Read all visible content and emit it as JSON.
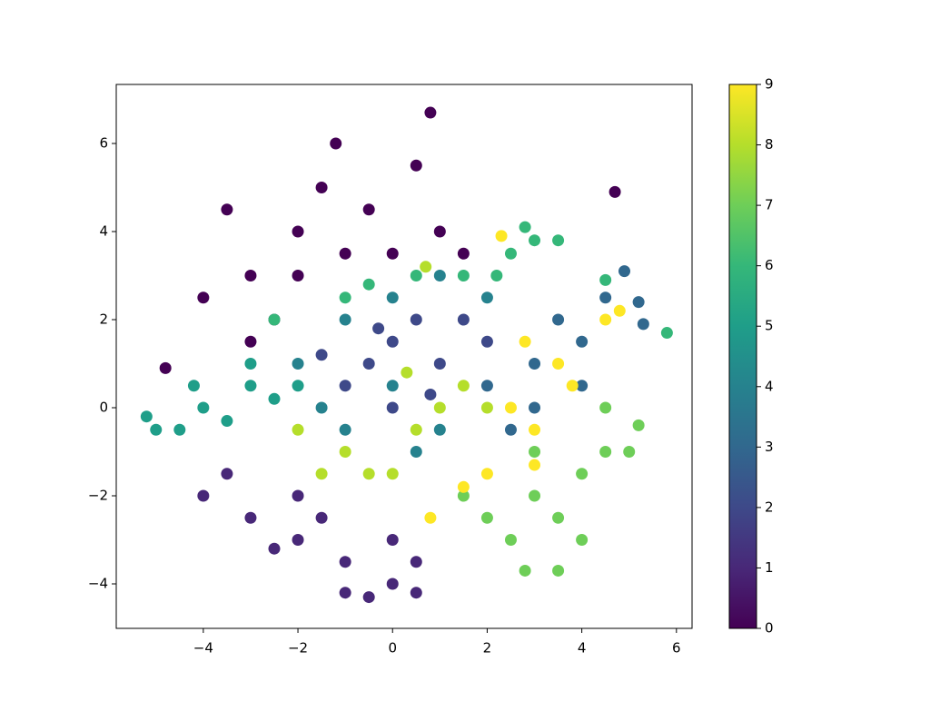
{
  "chart_data": {
    "type": "scatter",
    "colormap": "viridis",
    "xlim": [
      -5.84,
      6.33
    ],
    "ylim": [
      -5.01,
      7.34
    ],
    "clim": [
      0,
      9
    ],
    "xticks": [
      {
        "value": -4,
        "label": "−4"
      },
      {
        "value": -2,
        "label": "−2"
      },
      0,
      2,
      4,
      6
    ],
    "yticks": [
      {
        "value": -4,
        "label": "−4"
      },
      {
        "value": -2,
        "label": "−2"
      },
      0,
      2,
      4,
      6
    ],
    "cticks": [
      0,
      1,
      2,
      3,
      4,
      5,
      6,
      7,
      8,
      9
    ],
    "x": [
      -2,
      -1,
      -1.5,
      -3,
      -0.5,
      0.5,
      1,
      -2.5,
      -4,
      -3.5,
      0.8,
      -1.2,
      -4.8,
      4.7,
      -2,
      0,
      -3,
      1.5,
      -4,
      -3,
      -2,
      -1,
      0,
      -0.5,
      0.5,
      -1.5,
      -2.5,
      0,
      -1,
      -3.5,
      -2,
      0.5,
      0,
      -0.5,
      0.5,
      1,
      -1,
      1.5,
      0,
      -0.3,
      2,
      0.8,
      -1.5,
      3.5,
      4,
      3,
      2.5,
      4.5,
      5.2,
      5.3,
      4.9,
      3,
      2,
      4,
      -1,
      0,
      1,
      -2,
      1,
      0,
      -1,
      2,
      -1.5,
      0.5,
      -4,
      -3,
      -4.5,
      -5.2,
      -5,
      -3.5,
      -2.5,
      -3,
      -4.2,
      -2,
      2.5,
      3,
      2.2,
      1.5,
      3.5,
      5.8,
      4.5,
      -2.5,
      -1,
      0.5,
      2.8,
      -0.5,
      2,
      3,
      2.5,
      3.5,
      4,
      2.8,
      3.5,
      4.5,
      5,
      5.2,
      4,
      1.5,
      3,
      4.5,
      -1,
      0,
      1,
      0.5,
      -0.5,
      1.5,
      -2,
      0.3,
      2,
      -1.5,
      0.7,
      2,
      2.5,
      3,
      1.5,
      3.5,
      4.5,
      4.8,
      2.3,
      3.8,
      2.8,
      0.8,
      3
    ],
    "y": [
      4,
      3.5,
      5,
      3,
      4.5,
      5.5,
      4,
      2,
      2.5,
      4.5,
      6.7,
      6,
      0.9,
      4.9,
      3,
      3.5,
      1.5,
      3.5,
      -2,
      -2.5,
      -3,
      -3.5,
      -4,
      -4.3,
      -3.5,
      -2.5,
      -3.2,
      -3,
      -4.2,
      -1.5,
      -2,
      -4.2,
      1.5,
      1,
      2,
      1,
      0.5,
      2,
      0,
      1.8,
      1.5,
      0.3,
      1.2,
      2,
      1.5,
      0,
      -0.5,
      2.5,
      2.4,
      1.9,
      3.1,
      1,
      0.5,
      0.5,
      2,
      2.5,
      3,
      1,
      -0.5,
      0.5,
      -0.5,
      2.5,
      0,
      -1,
      0,
      0.5,
      -0.5,
      -0.2,
      -0.5,
      -0.3,
      0.2,
      1,
      0.5,
      0.5,
      3.5,
      3.8,
      3,
      3,
      3.8,
      1.7,
      2.9,
      2,
      2.5,
      3,
      4.1,
      2.8,
      -2.5,
      -2,
      -3,
      -2.5,
      -1.5,
      -3.7,
      -3.7,
      -1,
      -1,
      -0.4,
      -3,
      -2,
      -1,
      0,
      -1,
      -1.5,
      0,
      -0.5,
      -1.5,
      0.5,
      -0.5,
      0.8,
      0,
      -1.5,
      3.2,
      -1.5,
      0,
      -0.5,
      -1.8,
      1,
      2,
      2.2,
      3.9,
      0.5,
      1.5,
      -2.5,
      -1.3
    ],
    "c": [
      0,
      0,
      0,
      0,
      0,
      0,
      0,
      0,
      0,
      0,
      0,
      0,
      0,
      0,
      0,
      0,
      0,
      0,
      1,
      1,
      1,
      1,
      1,
      1,
      1,
      1,
      1,
      1,
      1,
      1,
      1,
      1,
      2,
      2,
      2,
      2,
      2,
      2,
      2,
      2,
      2,
      2,
      2,
      3,
      3,
      3,
      3,
      3,
      3,
      3,
      3,
      3,
      3,
      3,
      4,
      4,
      4,
      4,
      4,
      4,
      4,
      4,
      4,
      4,
      5,
      5,
      5,
      5,
      5,
      5,
      5,
      5,
      5,
      5,
      6,
      6,
      6,
      6,
      6,
      6,
      6,
      6,
      6,
      6,
      6,
      6,
      7,
      7,
      7,
      7,
      7,
      7,
      7,
      7,
      7,
      7,
      7,
      7,
      7,
      7,
      8,
      8,
      8,
      8,
      8,
      8,
      8,
      8,
      8,
      8,
      8,
      9,
      9,
      9,
      9,
      9,
      9,
      9,
      9,
      9,
      9,
      9,
      9
    ]
  }
}
